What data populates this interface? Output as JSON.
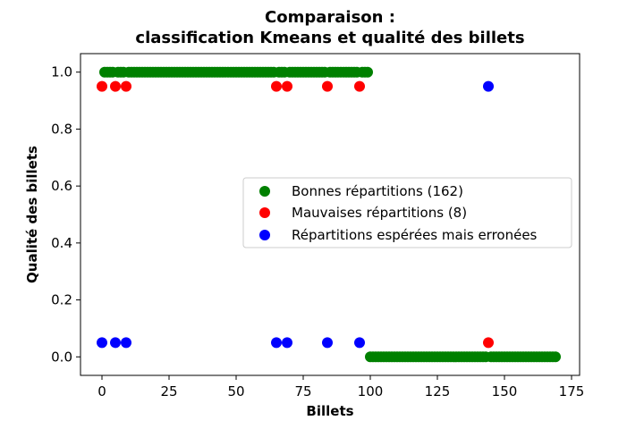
{
  "chart_data": {
    "type": "scatter",
    "title_line1": "Comparaison :",
    "title_line2": "classification Kmeans et qualité des billets",
    "xlabel": "Billets",
    "ylabel": "Qualité des billets",
    "xlim": [
      -8,
      178
    ],
    "ylim": [
      -0.065,
      1.065
    ],
    "xticks": [
      0,
      25,
      50,
      75,
      100,
      125,
      150,
      175
    ],
    "yticks": [
      0.0,
      0.2,
      0.4,
      0.6,
      0.8,
      1.0
    ],
    "xtick_labels": [
      "0",
      "25",
      "50",
      "75",
      "100",
      "125",
      "150",
      "175"
    ],
    "ytick_labels": [
      "0.0",
      "0.2",
      "0.4",
      "0.6",
      "0.8",
      "1.0"
    ],
    "legend_position": "center-right",
    "series": [
      {
        "name": "Bonnes répartitions (162)",
        "color": "#008000",
        "points": [
          [
            1,
            1
          ],
          [
            2,
            1
          ],
          [
            3,
            1
          ],
          [
            4,
            1
          ],
          [
            6,
            1
          ],
          [
            7,
            1
          ],
          [
            8,
            1
          ],
          [
            10,
            1
          ],
          [
            11,
            1
          ],
          [
            12,
            1
          ],
          [
            13,
            1
          ],
          [
            14,
            1
          ],
          [
            15,
            1
          ],
          [
            16,
            1
          ],
          [
            17,
            1
          ],
          [
            18,
            1
          ],
          [
            19,
            1
          ],
          [
            20,
            1
          ],
          [
            21,
            1
          ],
          [
            22,
            1
          ],
          [
            23,
            1
          ],
          [
            24,
            1
          ],
          [
            25,
            1
          ],
          [
            26,
            1
          ],
          [
            27,
            1
          ],
          [
            28,
            1
          ],
          [
            29,
            1
          ],
          [
            30,
            1
          ],
          [
            31,
            1
          ],
          [
            32,
            1
          ],
          [
            33,
            1
          ],
          [
            34,
            1
          ],
          [
            35,
            1
          ],
          [
            36,
            1
          ],
          [
            37,
            1
          ],
          [
            38,
            1
          ],
          [
            39,
            1
          ],
          [
            40,
            1
          ],
          [
            41,
            1
          ],
          [
            42,
            1
          ],
          [
            43,
            1
          ],
          [
            44,
            1
          ],
          [
            45,
            1
          ],
          [
            46,
            1
          ],
          [
            47,
            1
          ],
          [
            48,
            1
          ],
          [
            49,
            1
          ],
          [
            50,
            1
          ],
          [
            51,
            1
          ],
          [
            52,
            1
          ],
          [
            53,
            1
          ],
          [
            54,
            1
          ],
          [
            55,
            1
          ],
          [
            56,
            1
          ],
          [
            57,
            1
          ],
          [
            58,
            1
          ],
          [
            59,
            1
          ],
          [
            60,
            1
          ],
          [
            61,
            1
          ],
          [
            62,
            1
          ],
          [
            63,
            1
          ],
          [
            64,
            1
          ],
          [
            66,
            1
          ],
          [
            67,
            1
          ],
          [
            68,
            1
          ],
          [
            70,
            1
          ],
          [
            71,
            1
          ],
          [
            72,
            1
          ],
          [
            73,
            1
          ],
          [
            74,
            1
          ],
          [
            75,
            1
          ],
          [
            76,
            1
          ],
          [
            77,
            1
          ],
          [
            78,
            1
          ],
          [
            79,
            1
          ],
          [
            80,
            1
          ],
          [
            81,
            1
          ],
          [
            82,
            1
          ],
          [
            83,
            1
          ],
          [
            85,
            1
          ],
          [
            86,
            1
          ],
          [
            87,
            1
          ],
          [
            88,
            1
          ],
          [
            89,
            1
          ],
          [
            90,
            1
          ],
          [
            91,
            1
          ],
          [
            92,
            1
          ],
          [
            93,
            1
          ],
          [
            94,
            1
          ],
          [
            95,
            1
          ],
          [
            97,
            1
          ],
          [
            98,
            1
          ],
          [
            99,
            1
          ],
          [
            100,
            0
          ],
          [
            101,
            0
          ],
          [
            102,
            0
          ],
          [
            103,
            0
          ],
          [
            104,
            0
          ],
          [
            105,
            0
          ],
          [
            106,
            0
          ],
          [
            107,
            0
          ],
          [
            108,
            0
          ],
          [
            109,
            0
          ],
          [
            110,
            0
          ],
          [
            111,
            0
          ],
          [
            112,
            0
          ],
          [
            113,
            0
          ],
          [
            114,
            0
          ],
          [
            115,
            0
          ],
          [
            116,
            0
          ],
          [
            117,
            0
          ],
          [
            118,
            0
          ],
          [
            119,
            0
          ],
          [
            120,
            0
          ],
          [
            121,
            0
          ],
          [
            122,
            0
          ],
          [
            123,
            0
          ],
          [
            124,
            0
          ],
          [
            125,
            0
          ],
          [
            126,
            0
          ],
          [
            127,
            0
          ],
          [
            128,
            0
          ],
          [
            129,
            0
          ],
          [
            130,
            0
          ],
          [
            131,
            0
          ],
          [
            132,
            0
          ],
          [
            133,
            0
          ],
          [
            134,
            0
          ],
          [
            135,
            0
          ],
          [
            136,
            0
          ],
          [
            137,
            0
          ],
          [
            138,
            0
          ],
          [
            139,
            0
          ],
          [
            140,
            0
          ],
          [
            141,
            0
          ],
          [
            142,
            0
          ],
          [
            143,
            0
          ],
          [
            145,
            0
          ],
          [
            146,
            0
          ],
          [
            147,
            0
          ],
          [
            148,
            0
          ],
          [
            149,
            0
          ],
          [
            150,
            0
          ],
          [
            151,
            0
          ],
          [
            152,
            0
          ],
          [
            153,
            0
          ],
          [
            154,
            0
          ],
          [
            155,
            0
          ],
          [
            156,
            0
          ],
          [
            157,
            0
          ],
          [
            158,
            0
          ],
          [
            159,
            0
          ],
          [
            160,
            0
          ],
          [
            161,
            0
          ],
          [
            162,
            0
          ],
          [
            163,
            0
          ],
          [
            164,
            0
          ],
          [
            165,
            0
          ],
          [
            166,
            0
          ],
          [
            167,
            0
          ],
          [
            168,
            0
          ],
          [
            169,
            0
          ]
        ]
      },
      {
        "name": "Mauvaises répartitions (8)",
        "color": "#ff0000",
        "points": [
          [
            0,
            0.95
          ],
          [
            5,
            0.95
          ],
          [
            9,
            0.95
          ],
          [
            65,
            0.95
          ],
          [
            69,
            0.95
          ],
          [
            84,
            0.95
          ],
          [
            96,
            0.95
          ],
          [
            144,
            0.05
          ]
        ]
      },
      {
        "name": "Répartitions espérées mais erronées",
        "color": "#0000ff",
        "points": [
          [
            0,
            0.05
          ],
          [
            5,
            0.05
          ],
          [
            9,
            0.05
          ],
          [
            65,
            0.05
          ],
          [
            69,
            0.05
          ],
          [
            84,
            0.05
          ],
          [
            96,
            0.05
          ],
          [
            144,
            0.95
          ]
        ]
      }
    ]
  }
}
